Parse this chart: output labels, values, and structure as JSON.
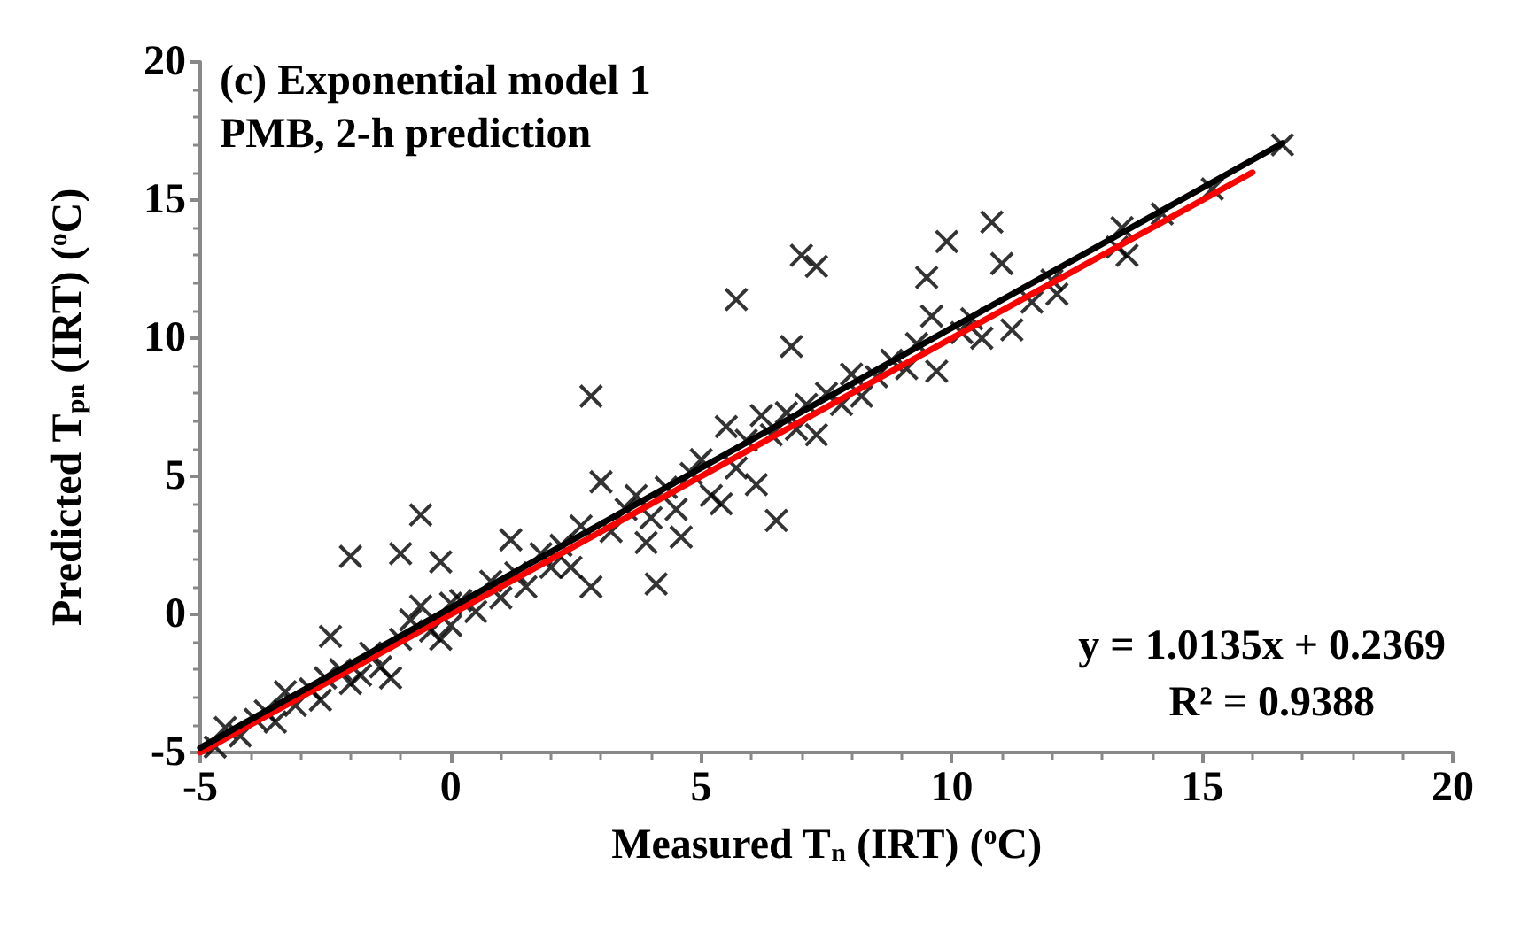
{
  "chart_data": {
    "type": "scatter",
    "title": "(c) Exponential model 1",
    "subtitle": "PMB, 2-h prediction",
    "xlabel": "Measured T$_{n}$ (IRT) ($^{o}$C)",
    "ylabel": "Predicted T$_{pn}$ (IRT) ($^{o}$C)",
    "xlim": [
      -5,
      20
    ],
    "ylim": [
      -5,
      20
    ],
    "xticks": [
      -5,
      0,
      5,
      10,
      15,
      20
    ],
    "yticks": [
      -5,
      0,
      5,
      10,
      15,
      20
    ],
    "grid": false,
    "marker": "cross",
    "annotations": [
      "y = 1.0135x + 0.2369",
      "R² = 0.9388"
    ],
    "series": [
      {
        "color": "#000000",
        "x": [
          -4.7,
          -4.5,
          -4.2,
          -3.9,
          -3.7,
          -3.5,
          -3.3,
          -3.1,
          -2.8,
          -2.6,
          -2.5,
          -2.4,
          -2.2,
          -2.0,
          -1.8,
          -1.6,
          -1.4,
          -1.2,
          -1.0,
          -0.8,
          -0.6,
          -0.4,
          -0.2,
          0.0,
          0.0,
          0.2,
          0.5,
          0.8,
          1.0,
          1.3,
          1.5,
          1.8,
          2.0,
          2.2,
          2.4,
          2.6,
          2.8,
          3.0,
          3.2,
          3.5,
          3.7,
          3.9,
          4.0,
          4.1,
          4.3,
          4.5,
          4.6,
          4.8,
          5.0,
          5.2,
          5.4,
          5.5,
          5.7,
          5.9,
          6.1,
          6.2,
          6.4,
          6.5,
          6.7,
          6.8,
          6.9,
          7.1,
          7.3,
          7.5,
          7.8,
          8.0,
          8.2,
          8.5,
          8.8,
          9.1,
          9.3,
          9.5,
          9.6,
          9.7,
          9.9,
          10.2,
          10.4,
          10.6,
          10.8,
          11.0,
          11.2,
          11.6,
          12.0,
          12.1,
          13.3,
          13.4,
          13.5,
          14.2,
          15.2,
          16.6,
          7.0,
          7.3,
          5.7,
          2.8,
          -0.6,
          -2.0,
          -1.0,
          -0.2,
          1.2
        ],
        "values": [
          -4.8,
          -4.1,
          -4.4,
          -3.8,
          -3.5,
          -3.9,
          -2.8,
          -3.3,
          -2.7,
          -3.1,
          -2.3,
          -0.8,
          -2.0,
          -2.5,
          -2.2,
          -1.4,
          -1.9,
          -2.3,
          -0.9,
          -0.2,
          0.3,
          -0.6,
          -0.9,
          -0.4,
          0.4,
          0.5,
          0.1,
          1.2,
          0.6,
          1.5,
          1.0,
          2.2,
          1.7,
          2.5,
          1.7,
          3.2,
          1.0,
          4.8,
          3.0,
          3.8,
          4.3,
          2.6,
          3.5,
          1.1,
          4.6,
          3.8,
          2.8,
          5.1,
          5.6,
          4.3,
          4.0,
          6.8,
          5.3,
          6.3,
          4.7,
          7.2,
          6.5,
          3.4,
          7.3,
          9.7,
          6.7,
          7.6,
          6.5,
          8.0,
          7.6,
          8.7,
          7.9,
          8.6,
          9.2,
          8.9,
          9.8,
          12.2,
          10.8,
          8.8,
          13.5,
          10.2,
          10.7,
          10.0,
          14.2,
          12.7,
          10.3,
          11.3,
          12.1,
          11.6,
          13.3,
          14.0,
          13.0,
          14.5,
          15.4,
          17.0,
          13.0,
          12.6,
          11.4,
          7.9,
          3.6,
          2.1,
          2.2,
          1.9,
          2.7
        ]
      },
      {
        "type": "line",
        "color": "#ff0000",
        "marker": "none",
        "x": [
          -5,
          16
        ],
        "values": [
          -5,
          16
        ]
      },
      {
        "type": "line",
        "color": "#000000",
        "marker": "none",
        "x": [
          -5,
          16.6
        ],
        "values": [
          -4.83,
          17.06
        ]
      }
    ]
  }
}
